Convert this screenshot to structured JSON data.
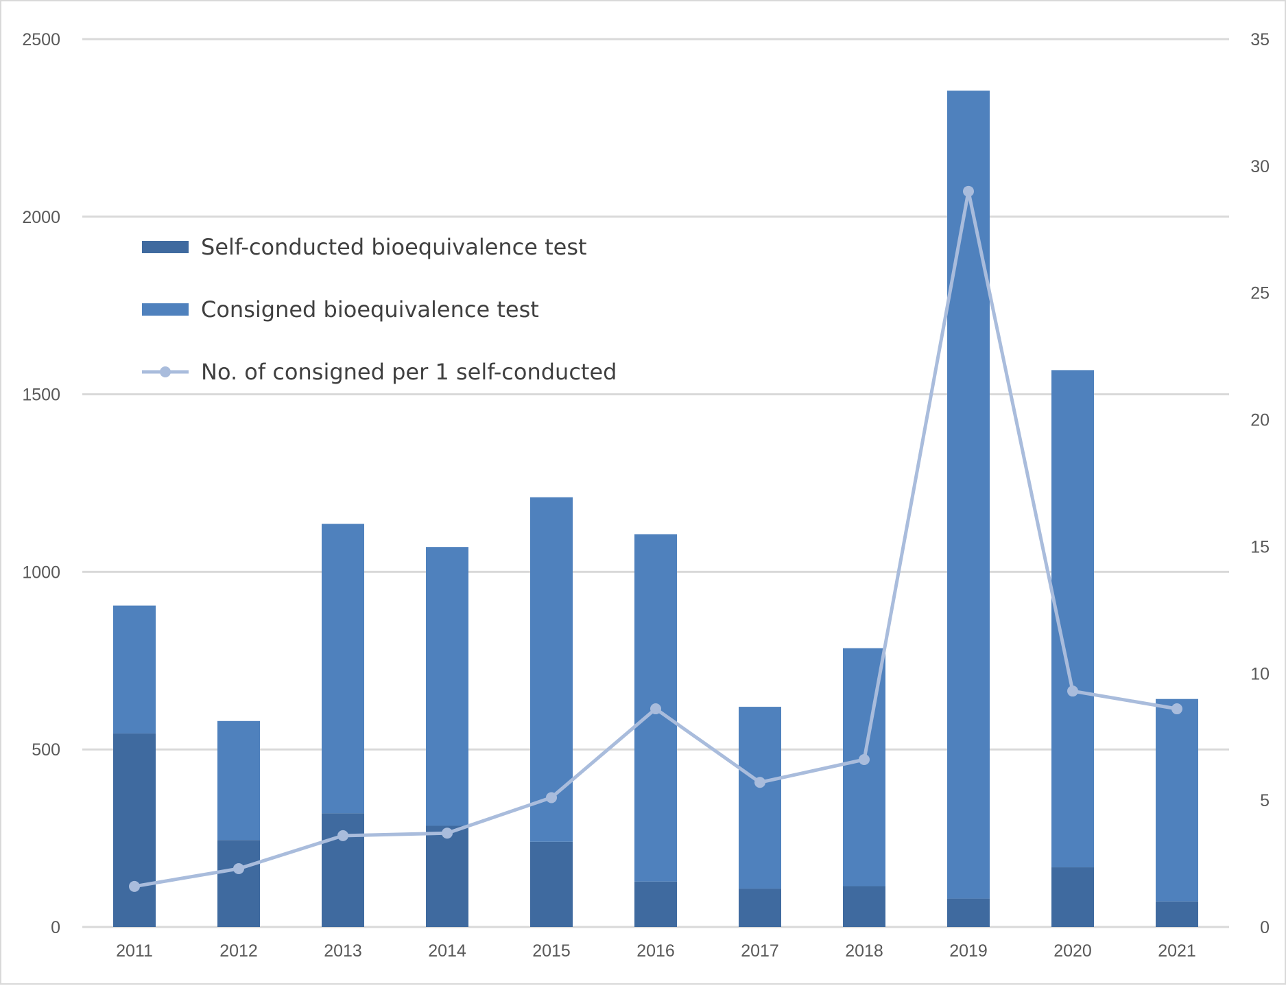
{
  "chart_data": {
    "type": "bar",
    "stacked": true,
    "title": "",
    "xlabel": "",
    "ylabel": "",
    "y2label": "",
    "categories": [
      "2011",
      "2012",
      "2013",
      "2014",
      "2015",
      "2016",
      "2017",
      "2018",
      "2019",
      "2020",
      "2021"
    ],
    "ylim": [
      0,
      2500
    ],
    "yticks": [
      0,
      500,
      1000,
      1500,
      2000,
      2500
    ],
    "y2lim": [
      0,
      35
    ],
    "y2ticks": [
      0,
      5,
      10,
      15,
      20,
      25,
      30,
      35
    ],
    "grid": true,
    "legend_position": "upper-left",
    "series": [
      {
        "name": "Self-conducted bioequivalence test",
        "kind": "bar",
        "axis": "left",
        "color": "#3f6a9f",
        "values": [
          545,
          245,
          320,
          285,
          240,
          128,
          108,
          115,
          80,
          168,
          72
        ]
      },
      {
        "name": "Consigned bioequivalence test",
        "kind": "bar",
        "axis": "left",
        "color": "#4f81bd",
        "values": [
          360,
          335,
          815,
          785,
          970,
          978,
          512,
          670,
          2275,
          1400,
          570
        ]
      },
      {
        "name": "No. of consigned per 1 self-conducted",
        "kind": "line",
        "axis": "right",
        "color": "#a9bcdc",
        "values": [
          1.6,
          2.3,
          3.6,
          3.7,
          5.1,
          8.6,
          5.7,
          6.6,
          29.0,
          9.3,
          8.6
        ]
      }
    ]
  }
}
